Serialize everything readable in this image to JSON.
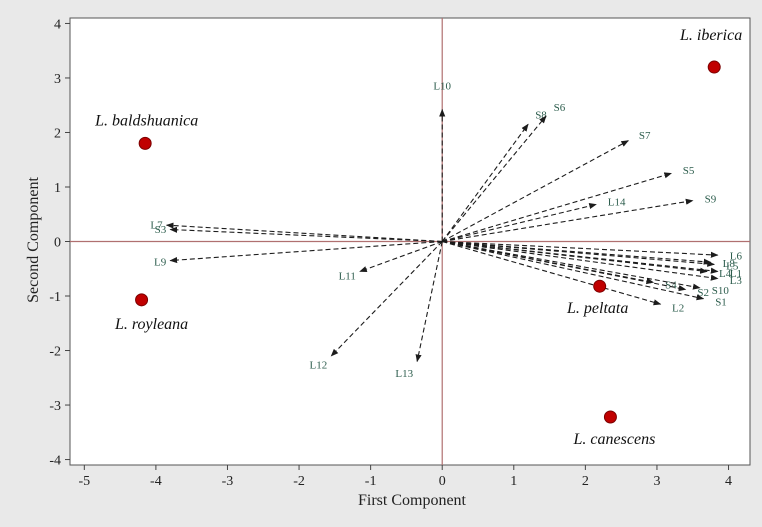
{
  "chart_data": {
    "type": "scatter",
    "xlabel": "First Component",
    "ylabel": "Second Component",
    "xlim": [
      -5.2,
      4.3
    ],
    "ylim": [
      -4.1,
      4.1
    ],
    "xticks": [
      -5,
      -4,
      -3,
      -2,
      -1,
      0,
      1,
      2,
      3,
      4
    ],
    "yticks": [
      -4,
      -3,
      -2,
      -1,
      0,
      1,
      2,
      3,
      4
    ],
    "grid": false,
    "reference_lines": {
      "x": 0,
      "y": 0,
      "color": "#b07070"
    },
    "vector_color": "#1c1c1c",
    "point_color": "#c00000",
    "points": [
      {
        "label": "L. iberica",
        "x": 3.8,
        "y": 3.2
      },
      {
        "label": "L. baldshuanica",
        "x": -4.15,
        "y": 1.8
      },
      {
        "label": "L. royleana",
        "x": -4.2,
        "y": -1.07
      },
      {
        "label": "L. peltata",
        "x": 2.2,
        "y": -0.82
      },
      {
        "label": "L. canescens",
        "x": 2.35,
        "y": -3.22
      }
    ],
    "vectors": [
      {
        "label": "L10",
        "x": 0.0,
        "y": 2.42
      },
      {
        "label": "S8",
        "x": 1.2,
        "y": 2.15
      },
      {
        "label": "S6",
        "x": 1.45,
        "y": 2.3
      },
      {
        "label": "S7",
        "x": 2.6,
        "y": 1.85
      },
      {
        "label": "S5",
        "x": 3.2,
        "y": 1.25
      },
      {
        "label": "L14",
        "x": 2.15,
        "y": 0.68
      },
      {
        "label": "S9",
        "x": 3.5,
        "y": 0.75
      },
      {
        "label": "L7",
        "x": -3.85,
        "y": 0.3
      },
      {
        "label": "S3",
        "x": -3.8,
        "y": 0.22
      },
      {
        "label": "L9",
        "x": -3.8,
        "y": -0.35
      },
      {
        "label": "L11",
        "x": -1.15,
        "y": -0.55
      },
      {
        "label": "L12",
        "x": -1.55,
        "y": -2.1
      },
      {
        "label": "L13",
        "x": -0.35,
        "y": -2.2
      },
      {
        "label": "L6",
        "x": 3.85,
        "y": -0.25
      },
      {
        "label": "L8",
        "x": 3.75,
        "y": -0.38
      },
      {
        "label": "L5",
        "x": 3.8,
        "y": -0.42
      },
      {
        "label": "L4",
        "x": 3.7,
        "y": -0.55
      },
      {
        "label": "L1",
        "x": 3.85,
        "y": -0.55
      },
      {
        "label": "L3",
        "x": 3.85,
        "y": -0.68
      },
      {
        "label": "S4",
        "x": 2.95,
        "y": -0.75
      },
      {
        "label": "S2",
        "x": 3.4,
        "y": -0.88
      },
      {
        "label": "S10",
        "x": 3.6,
        "y": -0.85
      },
      {
        "label": "S1",
        "x": 3.65,
        "y": -1.05
      },
      {
        "label": "L2",
        "x": 3.05,
        "y": -1.15
      }
    ]
  }
}
